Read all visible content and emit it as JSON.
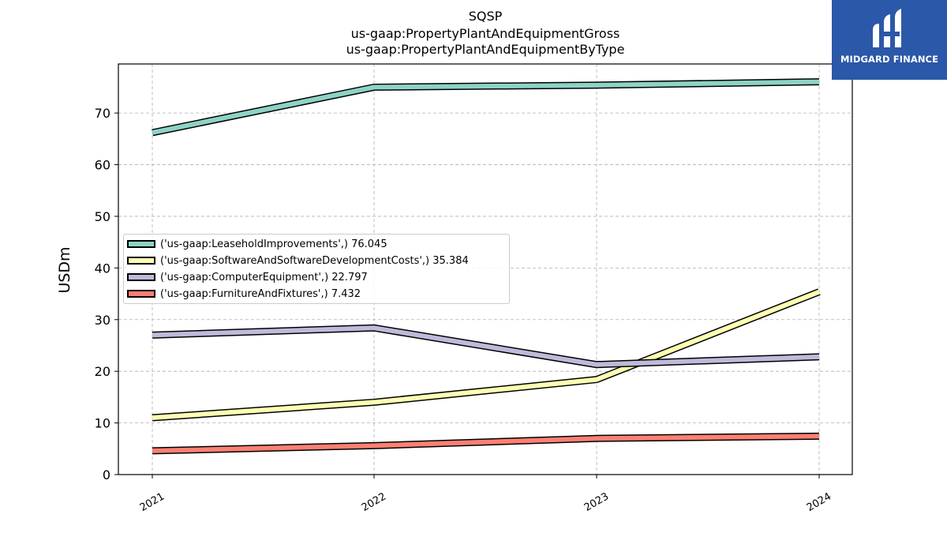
{
  "title_lines": [
    "SQSP",
    "us-gaap:PropertyPlantAndEquipmentGross",
    "us-gaap:PropertyPlantAndEquipmentByType"
  ],
  "logo": {
    "text": "MIDGARD FINANCE",
    "color": "#2b58a8"
  },
  "chart_data": {
    "type": "line",
    "title": "SQSP\nus-gaap:PropertyPlantAndEquipmentGross\nus-gaap:PropertyPlantAndEquipmentByType",
    "xlabel": "",
    "ylabel": "USDm",
    "categories": [
      "2021",
      "2022",
      "2023",
      "2024"
    ],
    "ylim": [
      0,
      79.5
    ],
    "yticks": [
      0,
      10,
      20,
      30,
      40,
      50,
      60,
      70
    ],
    "grid": true,
    "legend_position": "center-left",
    "series": [
      {
        "name": "('us-gaap:LeaseholdImprovements',) 76.045",
        "values": [
          66.2,
          75.0,
          75.4,
          76.045
        ],
        "color": "#8dd3c7"
      },
      {
        "name": "('us-gaap:SoftwareAndSoftwareDevelopmentCosts',) 35.384",
        "values": [
          11.0,
          14.0,
          18.4,
          35.384
        ],
        "color": "#ffffb3"
      },
      {
        "name": "('us-gaap:ComputerEquipment',) 22.797",
        "values": [
          27.0,
          28.4,
          21.3,
          22.797
        ],
        "color": "#bebada"
      },
      {
        "name": "('us-gaap:FurnitureAndFixtures',) 7.432",
        "values": [
          4.6,
          5.6,
          7.0,
          7.432
        ],
        "color": "#fb8072"
      }
    ]
  }
}
